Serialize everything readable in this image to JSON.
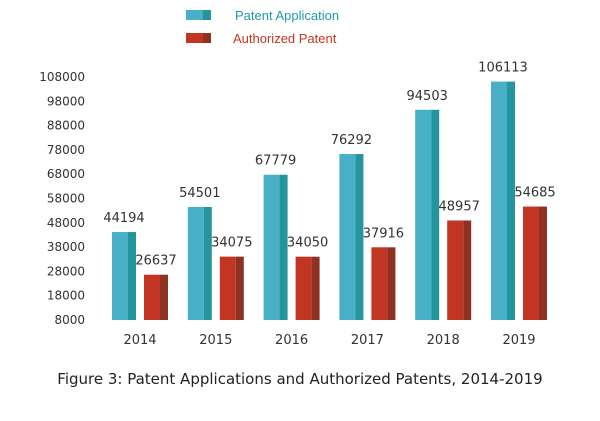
{
  "chart_data": {
    "type": "bar",
    "title": "Figure 3: Patent Applications and Authorized Patents, 2014-2019",
    "xlabel": "",
    "ylabel": "",
    "categories": [
      "2014",
      "2015",
      "2016",
      "2017",
      "2018",
      "2019"
    ],
    "series": [
      {
        "name": "Patent Application",
        "color": "#47AFC6",
        "shade": "#24959A",
        "values": [
          44194,
          54501,
          67779,
          76292,
          94503,
          106113
        ]
      },
      {
        "name": "Authorized Patent",
        "color": "#C23522",
        "shade": "#8E3324",
        "values": [
          26637,
          34075,
          34050,
          37916,
          48957,
          54685
        ]
      }
    ],
    "yticks": [
      8000,
      18000,
      28000,
      38000,
      48000,
      58000,
      68000,
      78000,
      88000,
      98000,
      108000
    ],
    "ylim": [
      8000,
      108000
    ],
    "grid": false,
    "legend": "top-center",
    "data_labels": true
  }
}
